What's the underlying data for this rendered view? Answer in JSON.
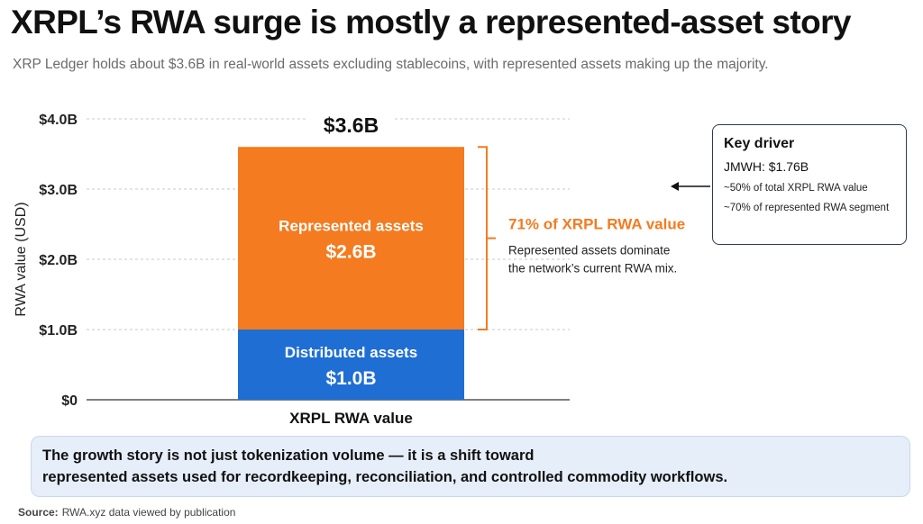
{
  "title": "XRPL’s RWA surge is mostly a represented-asset story",
  "subtitle": "XRP Ledger holds about $3.6B in real-world assets excluding stablecoins, with represented assets making up the majority.",
  "chart_data": {
    "type": "bar",
    "stacked": true,
    "categories": [
      "XRPL RWA value"
    ],
    "series": [
      {
        "name": "Distributed assets",
        "values": [
          1.0
        ],
        "value_label": "$1.0B",
        "color": "#1f6ed4"
      },
      {
        "name": "Represented assets",
        "values": [
          2.6
        ],
        "value_label": "$2.6B",
        "color": "#f47b20"
      }
    ],
    "total_label": "$3.6B",
    "ylabel": "RWA value (USD)",
    "xlabel": "XRPL RWA value",
    "ylim": [
      0,
      4.0
    ],
    "yticks": [
      0,
      1.0,
      2.0,
      3.0,
      4.0
    ],
    "ytick_labels": [
      "$0",
      "$1.0B",
      "$2.0B",
      "$3.0B",
      "$4.0B"
    ],
    "grid": true,
    "annotation": {
      "headline": "71% of XRPL RWA value",
      "text_lines": [
        "Represented assets dominate",
        "the network’s current RWA mix."
      ],
      "color": "#f47b20"
    }
  },
  "key_driver": {
    "title": "Key driver",
    "main": "JMWH: $1.76B",
    "line1": "~50% of total XRPL RWA value",
    "line2": "~70% of represented RWA segment"
  },
  "insight": {
    "line1": "The growth story is not just tokenization volume — it is a shift toward",
    "line2": "represented assets used for recordkeeping, reconciliation, and controlled commodity workflows."
  },
  "source": {
    "label": "Source:",
    "text": "RWA.xyz data viewed by publication"
  }
}
